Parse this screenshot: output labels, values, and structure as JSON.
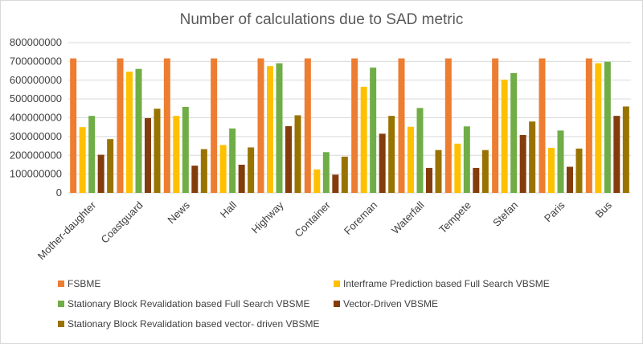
{
  "chart_data": {
    "type": "bar",
    "title": "Number of calculations due to SAD metric",
    "xlabel": "",
    "ylabel": "",
    "ylim": [
      0,
      800000000
    ],
    "yticks": [
      0,
      100000000,
      200000000,
      300000000,
      400000000,
      500000000,
      600000000,
      700000000,
      800000000
    ],
    "grid": true,
    "legend_position": "bottom",
    "categories": [
      "Mother-daughter",
      "Coastguard",
      "News",
      "Hall",
      "Highway",
      "Container",
      "Foreman",
      "Waterfall",
      "Tempete",
      "Stefan",
      "Paris",
      "Bus"
    ],
    "series": [
      {
        "name": "FSBME",
        "color": "#ed7d31",
        "values": [
          716000000,
          716000000,
          716000000,
          716000000,
          716000000,
          716000000,
          716000000,
          716000000,
          716000000,
          716000000,
          716000000,
          716000000
        ]
      },
      {
        "name": "Interframe Prediction based Full Search VBSME",
        "color": "#ffc000",
        "values": [
          350000000,
          645000000,
          410000000,
          255000000,
          675000000,
          125000000,
          565000000,
          352000000,
          262000000,
          602000000,
          240000000,
          690000000
        ]
      },
      {
        "name": "Stationary Block Revalidation based Full Search VBSME",
        "color": "#70ad47",
        "values": [
          410000000,
          660000000,
          458000000,
          343000000,
          690000000,
          217000000,
          667000000,
          452000000,
          354000000,
          638000000,
          332000000,
          698000000
        ]
      },
      {
        "name": "Vector-Driven VBSME",
        "color": "#843c0c",
        "values": [
          203000000,
          398000000,
          145000000,
          150000000,
          355000000,
          97000000,
          315000000,
          133000000,
          133000000,
          308000000,
          139000000,
          410000000
        ]
      },
      {
        "name": "Stationary Block Revalidation based vector- driven VBSME",
        "color": "#997300",
        "values": [
          286000000,
          448000000,
          233000000,
          242000000,
          413000000,
          193000000,
          410000000,
          228000000,
          228000000,
          380000000,
          236000000,
          460000000
        ]
      }
    ]
  }
}
